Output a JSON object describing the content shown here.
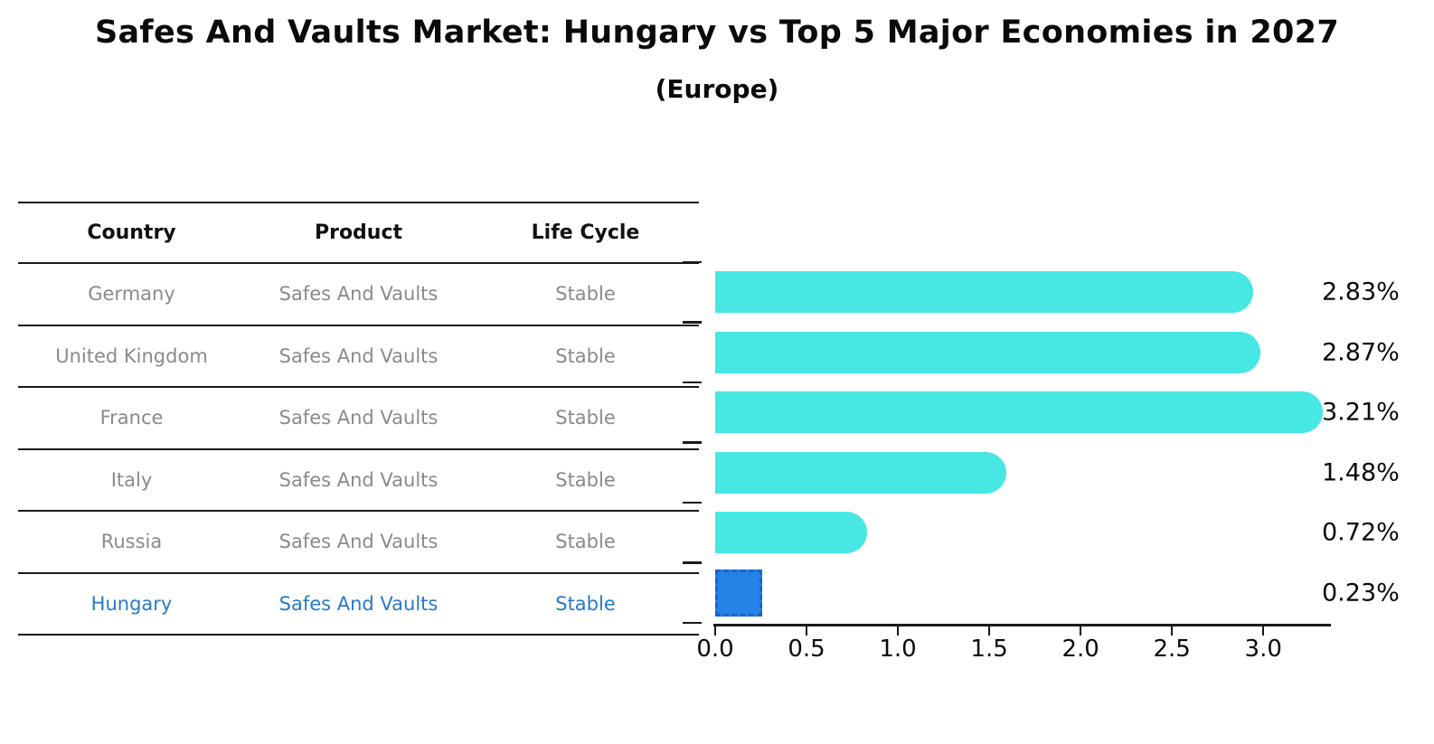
{
  "title": "Safes And Vaults Market: Hungary vs Top 5 Major Economies in 2027",
  "subtitle": "(Europe)",
  "table": {
    "headers": [
      "Country",
      "Product",
      "Life Cycle"
    ],
    "rows": [
      {
        "country": "Germany",
        "product": "Safes And Vaults",
        "life_cycle": "Stable",
        "highlight": false
      },
      {
        "country": "United Kingdom",
        "product": "Safes And Vaults",
        "life_cycle": "Stable",
        "highlight": false
      },
      {
        "country": "France",
        "product": "Safes And Vaults",
        "life_cycle": "Stable",
        "highlight": false
      },
      {
        "country": "Italy",
        "product": "Safes And Vaults",
        "life_cycle": "Stable",
        "highlight": false
      },
      {
        "country": "Russia",
        "product": "Safes And Vaults",
        "life_cycle": "Stable",
        "highlight": true
      }
    ],
    "highlight_row": {
      "country": "Hungary",
      "product": "Safes And Vaults",
      "life_cycle": "Stable"
    }
  },
  "chart_data": {
    "type": "bar",
    "orientation": "horizontal",
    "categories": [
      "Germany",
      "United Kingdom",
      "France",
      "Italy",
      "Russia",
      "Hungary"
    ],
    "values": [
      2.83,
      2.87,
      3.21,
      1.48,
      0.72,
      0.23
    ],
    "value_labels": [
      "2.83%",
      "2.87%",
      "3.21%",
      "1.48%",
      "0.72%",
      "0.23%"
    ],
    "highlight_index": 5,
    "xticks": [
      "0.0",
      "0.5",
      "1.0",
      "1.5",
      "2.0",
      "2.5",
      "3.0"
    ],
    "xlim": [
      0,
      3.37
    ],
    "grid": false,
    "legend": false,
    "bar_color": "#47e7e3",
    "highlight_bar_color": "#2583e8",
    "highlight_border_color": "#1565cc"
  },
  "colors": {
    "row_text": "#8a8a8a",
    "highlight_text": "#2779c9",
    "header_text": "#111111",
    "axis": "#1a1a1a"
  }
}
